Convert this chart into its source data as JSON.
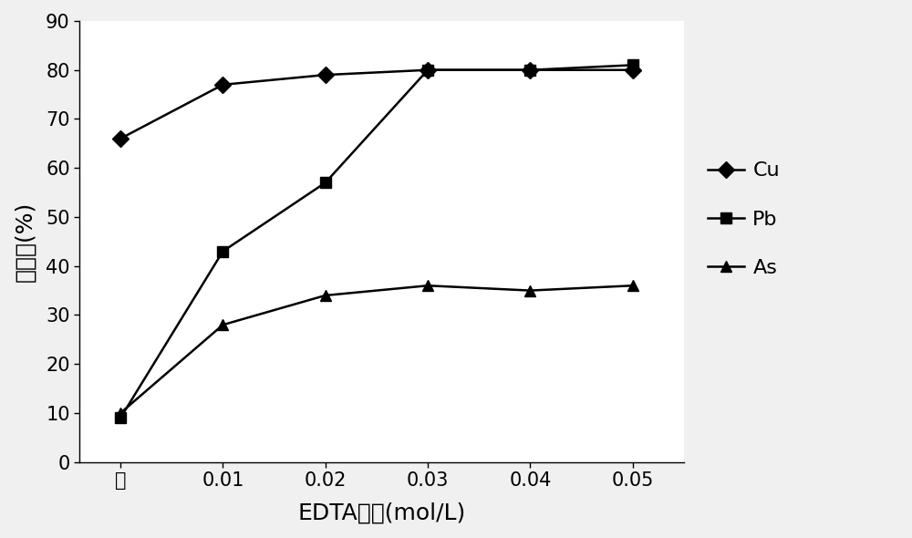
{
  "x_labels": [
    "水",
    "0.01",
    "0.02",
    "0.03",
    "0.04",
    "0.05"
  ],
  "x_positions": [
    0,
    1,
    2,
    3,
    4,
    5
  ],
  "cu_values": [
    66,
    77,
    79,
    80,
    80,
    80
  ],
  "pb_values": [
    9,
    43,
    57,
    80,
    80,
    81
  ],
  "as_values": [
    10,
    28,
    34,
    36,
    35,
    36
  ],
  "xlabel": "EDTA浓度(mol/L)",
  "ylabel": "去除率(%)",
  "ylim": [
    0,
    90
  ],
  "yticks": [
    0,
    10,
    20,
    30,
    40,
    50,
    60,
    70,
    80,
    90
  ],
  "legend_labels": [
    "Cu",
    "Pb",
    "As"
  ],
  "line_color": "#000000",
  "marker_cu": "D",
  "marker_pb": "s",
  "marker_as": "^",
  "linewidth": 1.8,
  "markersize": 9,
  "label_fontsize": 18,
  "tick_fontsize": 15,
  "legend_fontsize": 16
}
